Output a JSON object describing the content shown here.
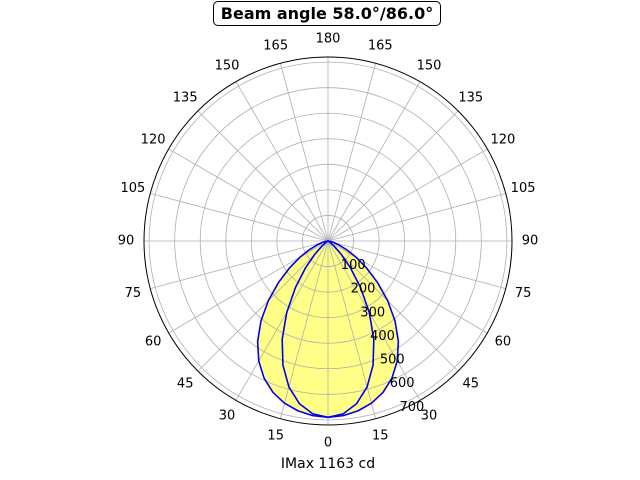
{
  "chart_data": {
    "type": "polar",
    "title": "Beam angle 58.0°/86.0°",
    "xlabel": "IMax 1163 cd",
    "angular_ticks": [
      "0",
      "15",
      "30",
      "45",
      "60",
      "75",
      "90",
      "105",
      "120",
      "135",
      "150",
      "165",
      "180",
      "165",
      "150",
      "135",
      "120",
      "105",
      "90",
      "75",
      "60",
      "45",
      "30",
      "15"
    ],
    "radial_ticks": [
      100,
      200,
      300,
      400,
      500,
      600,
      700
    ],
    "r_max": 720,
    "grid": true,
    "series": [
      {
        "angles_deg": [
          0,
          5,
          10,
          15,
          20,
          25,
          30,
          35,
          40,
          45,
          50,
          55,
          60,
          65,
          70,
          75,
          80,
          85,
          90
        ],
        "values": [
          690,
          686,
          675,
          657,
          630,
          592,
          542,
          480,
          408,
          330,
          253,
          184,
          126,
          80,
          46,
          23,
          9,
          2,
          0
        ],
        "fill": "#ffff88",
        "color": "#0000ee"
      },
      {
        "angles_deg": [
          0,
          5,
          10,
          15,
          20,
          25,
          30,
          35,
          40,
          45,
          50,
          55,
          60,
          65,
          70,
          75,
          80,
          85,
          90
        ],
        "values": [
          690,
          679,
          646,
          591,
          516,
          424,
          323,
          222,
          136,
          71,
          30,
          9,
          2,
          0,
          0,
          0,
          0,
          0,
          0
        ],
        "fill": "#ffff88",
        "color": "#0000ee"
      }
    ]
  }
}
